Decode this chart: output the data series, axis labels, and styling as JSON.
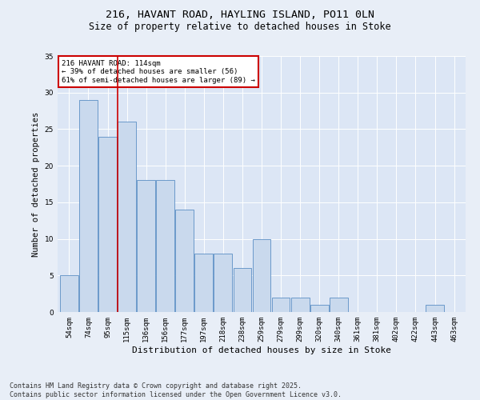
{
  "title1": "216, HAVANT ROAD, HAYLING ISLAND, PO11 0LN",
  "title2": "Size of property relative to detached houses in Stoke",
  "xlabel": "Distribution of detached houses by size in Stoke",
  "ylabel": "Number of detached properties",
  "categories": [
    "54sqm",
    "74sqm",
    "95sqm",
    "115sqm",
    "136sqm",
    "156sqm",
    "177sqm",
    "197sqm",
    "218sqm",
    "238sqm",
    "259sqm",
    "279sqm",
    "299sqm",
    "320sqm",
    "340sqm",
    "361sqm",
    "381sqm",
    "402sqm",
    "422sqm",
    "443sqm",
    "463sqm"
  ],
  "values": [
    5,
    29,
    24,
    26,
    18,
    18,
    14,
    8,
    8,
    6,
    10,
    2,
    2,
    1,
    2,
    0,
    0,
    0,
    0,
    1,
    0
  ],
  "bar_color": "#c9d9ed",
  "bar_edge_color": "#5b8ec4",
  "vline_x": 2.5,
  "annotation_text": "216 HAVANT ROAD: 114sqm\n← 39% of detached houses are smaller (56)\n61% of semi-detached houses are larger (89) →",
  "annotation_box_color": "#ffffff",
  "annotation_box_edge": "#cc0000",
  "ylim": [
    0,
    35
  ],
  "yticks": [
    0,
    5,
    10,
    15,
    20,
    25,
    30,
    35
  ],
  "background_color": "#e8eef7",
  "plot_bg_color": "#dce6f5",
  "footer": "Contains HM Land Registry data © Crown copyright and database right 2025.\nContains public sector information licensed under the Open Government Licence v3.0.",
  "title1_fontsize": 9.5,
  "title2_fontsize": 8.5,
  "xlabel_fontsize": 8,
  "ylabel_fontsize": 7.5,
  "tick_fontsize": 6.5,
  "footer_fontsize": 6,
  "annotation_fontsize": 6.5
}
